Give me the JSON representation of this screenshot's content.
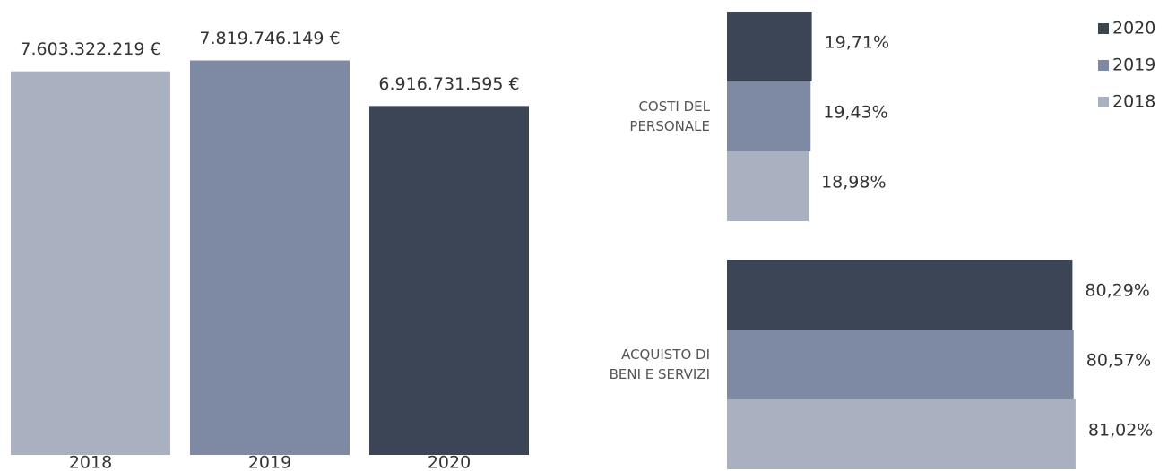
{
  "chart_data": [
    {
      "type": "bar",
      "categories": [
        "2018",
        "2019",
        "2020"
      ],
      "values": [
        7603322219,
        7819746149,
        6916731595
      ],
      "value_labels": [
        "7.603.322.219 €",
        "7.819.746.149 €",
        "6.916.731.595 €"
      ],
      "colors": [
        "#a9b1c1",
        "#7e8aa3",
        "#3c4556"
      ],
      "ylim": [
        0,
        9000000000
      ]
    },
    {
      "type": "hbar",
      "categories": [
        "COSTI DEL PERSONALE",
        "ACQUISTO DI BENI E SERVIZI"
      ],
      "series": [
        {
          "name": "2020",
          "color": "#3c4556",
          "values": [
            19.71,
            80.29
          ],
          "value_labels": [
            "19,71%",
            "80,29%"
          ]
        },
        {
          "name": "2019",
          "color": "#7e8aa3",
          "values": [
            19.43,
            80.57
          ],
          "value_labels": [
            "19,43%",
            "80,57%"
          ]
        },
        {
          "name": "2018",
          "color": "#a9b1c1",
          "values": [
            18.98,
            81.02
          ],
          "value_labels": [
            "18,98%",
            "81,02%"
          ]
        }
      ],
      "xlim": [
        0,
        100
      ],
      "legend": "top-right"
    }
  ]
}
